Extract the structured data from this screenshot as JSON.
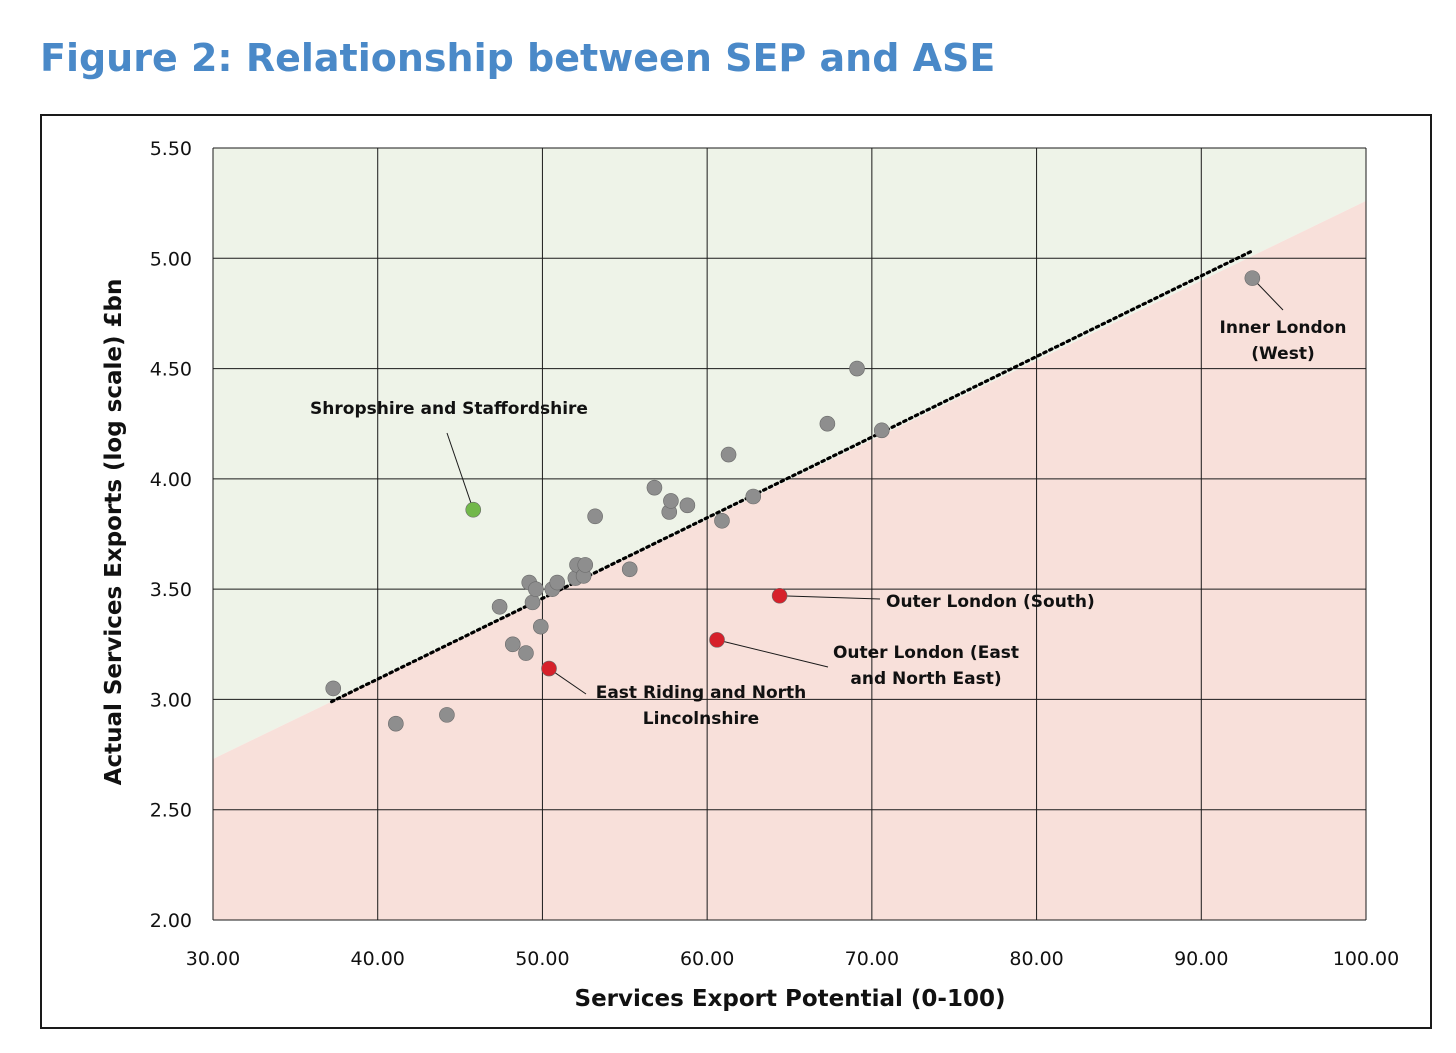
{
  "title": "Figure 2: Relationship between SEP and ASE",
  "chart_data": {
    "type": "scatter",
    "title": "Figure 2: Relationship between SEP and ASE",
    "xlabel": "Services Export Potential (0-100)",
    "ylabel": "Actual Services Exports (log scale) £bn",
    "xlim": [
      30,
      100
    ],
    "ylim": [
      2,
      5.5
    ],
    "x_ticks": [
      "30.00",
      "40.00",
      "50.00",
      "60.00",
      "70.00",
      "80.00",
      "90.00",
      "100.00"
    ],
    "y_ticks": [
      "2.00",
      "2.50",
      "3.00",
      "3.50",
      "4.00",
      "4.50",
      "5.00",
      "5.50"
    ],
    "grid": true,
    "legend": "none",
    "colors": {
      "above_region": "#eef3e8",
      "below_region": "#f8e0da",
      "neutral_point": "#8e8e8e",
      "above_highlight": "#72b84a",
      "below_highlight": "#d6202a",
      "trendline": "#000000"
    },
    "trendline": {
      "x": [
        37.2,
        93.0
      ],
      "y": [
        2.99,
        5.03
      ]
    },
    "regions": {
      "above_color": "#eef3e8",
      "below_color": "#f8e0da",
      "boundary_x": [
        30,
        100
      ],
      "boundary_y": [
        2.73,
        5.26
      ]
    },
    "points": [
      {
        "x": 37.3,
        "y": 3.05,
        "group": "neutral"
      },
      {
        "x": 41.1,
        "y": 2.89,
        "group": "neutral"
      },
      {
        "x": 44.2,
        "y": 2.93,
        "group": "neutral"
      },
      {
        "x": 47.4,
        "y": 3.42,
        "group": "neutral"
      },
      {
        "x": 48.2,
        "y": 3.25,
        "group": "neutral"
      },
      {
        "x": 49.0,
        "y": 3.21,
        "group": "neutral"
      },
      {
        "x": 49.2,
        "y": 3.53,
        "group": "neutral"
      },
      {
        "x": 49.4,
        "y": 3.44,
        "group": "neutral"
      },
      {
        "x": 49.6,
        "y": 3.5,
        "group": "neutral"
      },
      {
        "x": 49.9,
        "y": 3.33,
        "group": "neutral"
      },
      {
        "x": 50.6,
        "y": 3.5,
        "group": "neutral"
      },
      {
        "x": 50.9,
        "y": 3.53,
        "group": "neutral"
      },
      {
        "x": 52.0,
        "y": 3.55,
        "group": "neutral"
      },
      {
        "x": 52.1,
        "y": 3.61,
        "group": "neutral"
      },
      {
        "x": 52.5,
        "y": 3.56,
        "group": "neutral"
      },
      {
        "x": 52.6,
        "y": 3.61,
        "group": "neutral"
      },
      {
        "x": 53.2,
        "y": 3.83,
        "group": "neutral"
      },
      {
        "x": 55.3,
        "y": 3.59,
        "group": "neutral"
      },
      {
        "x": 56.8,
        "y": 3.96,
        "group": "neutral"
      },
      {
        "x": 57.7,
        "y": 3.85,
        "group": "neutral"
      },
      {
        "x": 57.8,
        "y": 3.9,
        "group": "neutral"
      },
      {
        "x": 58.8,
        "y": 3.88,
        "group": "neutral"
      },
      {
        "x": 60.9,
        "y": 3.81,
        "group": "neutral"
      },
      {
        "x": 61.3,
        "y": 4.11,
        "group": "neutral"
      },
      {
        "x": 62.8,
        "y": 3.92,
        "group": "neutral"
      },
      {
        "x": 67.3,
        "y": 4.25,
        "group": "neutral"
      },
      {
        "x": 69.1,
        "y": 4.5,
        "group": "neutral"
      },
      {
        "x": 70.6,
        "y": 4.22,
        "group": "neutral"
      },
      {
        "x": 93.1,
        "y": 4.91,
        "group": "neutral",
        "label": "inner-london-west"
      },
      {
        "x": 45.8,
        "y": 3.86,
        "group": "above",
        "label": "shropshire"
      },
      {
        "x": 50.4,
        "y": 3.14,
        "group": "below",
        "label": "east-riding"
      },
      {
        "x": 60.6,
        "y": 3.27,
        "group": "below",
        "label": "outer-london-east"
      },
      {
        "x": 64.4,
        "y": 3.47,
        "group": "below",
        "label": "outer-london-south"
      }
    ],
    "annotations": [
      {
        "key": "inner-london-west",
        "lines": [
          "Inner London",
          "(West)"
        ]
      },
      {
        "key": "shropshire",
        "lines": [
          "Shropshire and Staffordshire"
        ]
      },
      {
        "key": "outer-london-south",
        "lines": [
          "Outer London (South)"
        ]
      },
      {
        "key": "outer-london-east",
        "lines": [
          "Outer London (East",
          "and North East)"
        ]
      },
      {
        "key": "east-riding",
        "lines": [
          "East Riding and North",
          "Lincolnshire"
        ]
      }
    ]
  }
}
